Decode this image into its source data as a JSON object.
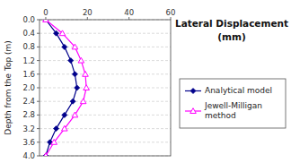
{
  "chart_data": {
    "type": "line",
    "title": "Lateral Displacement\n(mm)",
    "y_label": "Depth from the Top (m)",
    "xlim": [
      -3,
      60
    ],
    "ylim": [
      4,
      0
    ],
    "xticks": [
      0,
      20,
      40,
      60
    ],
    "yticks": [
      {
        "value": 0,
        "label": "0.0"
      },
      0.4,
      0.8,
      1.2,
      1.6,
      {
        "value": 2.0,
        "label": "2.0"
      },
      2.4,
      2.8,
      3.2,
      3.6,
      {
        "value": 4.0,
        "label": "4.0"
      }
    ],
    "grid": true,
    "legend": "right",
    "series": [
      {
        "name": "Analytical model",
        "color": "#00008B",
        "marker": "diamond",
        "x": [
          0,
          5,
          9,
          12,
          14,
          15,
          13,
          9,
          5,
          2,
          0
        ],
        "values": [
          0,
          0.4,
          0.8,
          1.2,
          1.6,
          2.0,
          2.4,
          2.8,
          3.2,
          3.6,
          4.0
        ]
      },
      {
        "name": "Jewell-Milligan\nmethod",
        "color": "#FF00FF",
        "marker": "triangle-open",
        "x": [
          0,
          8,
          14,
          17,
          19,
          19.5,
          18,
          14,
          9,
          4,
          0
        ],
        "values": [
          0,
          0.4,
          0.8,
          1.2,
          1.6,
          2.0,
          2.4,
          2.8,
          3.2,
          3.6,
          4.0
        ]
      }
    ]
  }
}
